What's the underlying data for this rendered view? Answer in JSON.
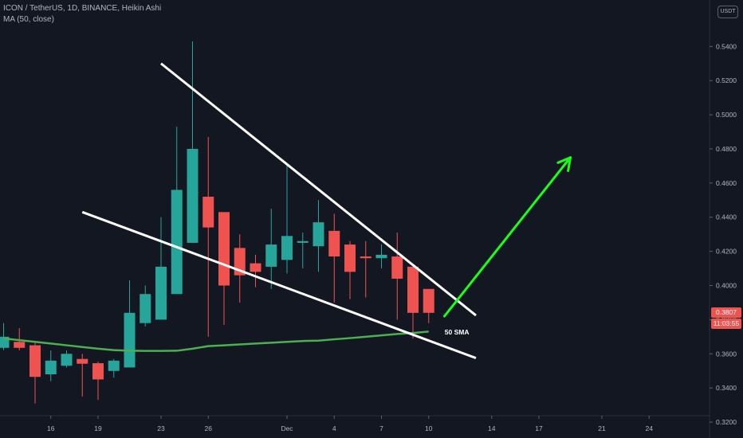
{
  "header": {
    "symbol_line": "ICON / TetherUS, 1D, BINANCE, Heikin Ashi",
    "indicator_line": "MA (50, close)"
  },
  "currency_badge": "USDT",
  "price_scale": {
    "last_price_label": "0.3807",
    "countdown_label": "11:03:55",
    "last_price_color": "#ef5350",
    "countdown_color": "#ef5350"
  },
  "colors": {
    "background": "#131722",
    "up_candle": "#26a69a",
    "down_candle": "#ef5350",
    "ma_line": "#4caf50",
    "trend_lines": "#ffffff",
    "arrow": "#1aff1a"
  },
  "annotations": {
    "ma_label": "50 SMA"
  },
  "chart_data": {
    "type": "candlestick",
    "ylim": [
      0.3107,
      0.5672
    ],
    "y_ticks": [
      "0.3200",
      "0.3400",
      "0.3600",
      "0.3800",
      "0.4000",
      "0.4200",
      "0.4400",
      "0.4600",
      "0.4800",
      "0.5000",
      "0.5200",
      "0.5400"
    ],
    "x_ticks": [
      "16",
      "19",
      "23",
      "26",
      "Dec",
      "4",
      "7",
      "10",
      "14",
      "17",
      "21",
      "24"
    ],
    "x_tick_index": [
      3,
      6,
      10,
      13,
      18,
      21,
      24,
      27,
      31,
      34,
      38,
      41
    ],
    "grid": false,
    "candles": [
      {
        "open": 0.3635,
        "high": 0.378,
        "low": 0.3622,
        "close": 0.37
      },
      {
        "open": 0.367,
        "high": 0.375,
        "low": 0.362,
        "close": 0.3635
      },
      {
        "open": 0.365,
        "high": 0.3665,
        "low": 0.331,
        "close": 0.3465
      },
      {
        "open": 0.348,
        "high": 0.362,
        "low": 0.344,
        "close": 0.356
      },
      {
        "open": 0.353,
        "high": 0.362,
        "low": 0.352,
        "close": 0.36
      },
      {
        "open": 0.357,
        "high": 0.36,
        "low": 0.335,
        "close": 0.3542
      },
      {
        "open": 0.3545,
        "high": 0.3555,
        "low": 0.333,
        "close": 0.345
      },
      {
        "open": 0.35,
        "high": 0.357,
        "low": 0.346,
        "close": 0.356
      },
      {
        "open": 0.352,
        "high": 0.403,
        "low": 0.352,
        "close": 0.384
      },
      {
        "open": 0.378,
        "high": 0.4,
        "low": 0.376,
        "close": 0.395
      },
      {
        "open": 0.38,
        "high": 0.44,
        "low": 0.38,
        "close": 0.411
      },
      {
        "open": 0.395,
        "high": 0.493,
        "low": 0.395,
        "close": 0.456
      },
      {
        "open": 0.425,
        "high": 0.543,
        "low": 0.425,
        "close": 0.48
      },
      {
        "open": 0.452,
        "high": 0.487,
        "low": 0.37,
        "close": 0.434
      },
      {
        "open": 0.443,
        "high": 0.443,
        "low": 0.377,
        "close": 0.4
      },
      {
        "open": 0.422,
        "high": 0.43,
        "low": 0.39,
        "close": 0.406
      },
      {
        "open": 0.413,
        "high": 0.418,
        "low": 0.399,
        "close": 0.408
      },
      {
        "open": 0.411,
        "high": 0.445,
        "low": 0.398,
        "close": 0.424
      },
      {
        "open": 0.415,
        "high": 0.47,
        "low": 0.407,
        "close": 0.429
      },
      {
        "open": 0.425,
        "high": 0.431,
        "low": 0.41,
        "close": 0.426
      },
      {
        "open": 0.423,
        "high": 0.45,
        "low": 0.408,
        "close": 0.437
      },
      {
        "open": 0.432,
        "high": 0.442,
        "low": 0.39,
        "close": 0.417
      },
      {
        "open": 0.424,
        "high": 0.426,
        "low": 0.392,
        "close": 0.408
      },
      {
        "open": 0.417,
        "high": 0.426,
        "low": 0.393,
        "close": 0.416
      },
      {
        "open": 0.416,
        "high": 0.424,
        "low": 0.41,
        "close": 0.418
      },
      {
        "open": 0.417,
        "high": 0.431,
        "low": 0.38,
        "close": 0.404
      },
      {
        "open": 0.411,
        "high": 0.412,
        "low": 0.369,
        "close": 0.384
      },
      {
        "open": 0.398,
        "high": 0.398,
        "low": 0.378,
        "close": 0.384
      }
    ],
    "ma50": [
      0.369,
      0.368,
      0.367,
      0.366,
      0.365,
      0.364,
      0.363,
      0.3622,
      0.3618,
      0.3617,
      0.3617,
      0.3618,
      0.363,
      0.3645,
      0.365,
      0.3655,
      0.366,
      0.3665,
      0.367,
      0.3675,
      0.3677,
      0.3685,
      0.3692,
      0.37,
      0.3708,
      0.3716,
      0.3722,
      0.373
    ],
    "lines": [
      {
        "name": "upper-trend",
        "points": [
          [
            10,
            0.53
          ],
          [
            30,
            0.3825
          ]
        ]
      },
      {
        "name": "lower-trend",
        "points": [
          [
            5,
            0.443
          ],
          [
            30,
            0.3575
          ]
        ]
      },
      {
        "name": "projection-arrow",
        "points": [
          [
            28,
            0.382
          ],
          [
            36,
            0.475
          ]
        ]
      }
    ]
  }
}
